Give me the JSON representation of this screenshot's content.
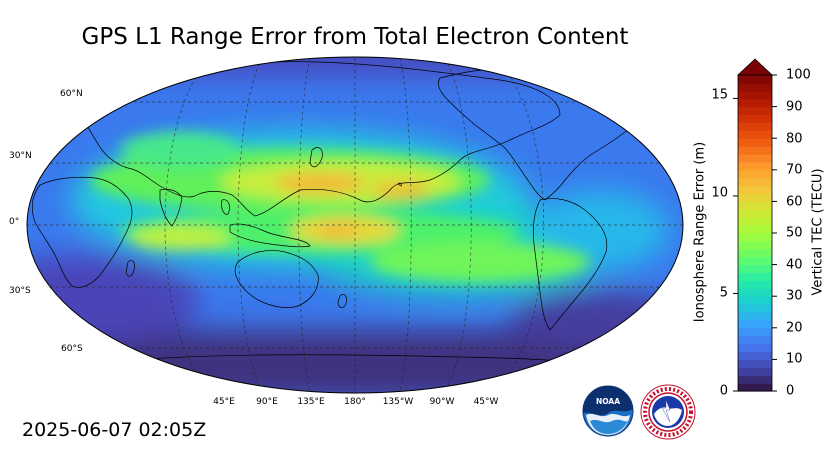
{
  "title": "GPS L1 Range Error from Total Electron Content",
  "timestamp": "2025-06-07 02:05Z",
  "map": {
    "projection": "robinson",
    "lat_labels": [
      "60°N",
      "30°N",
      "0°",
      "30°S",
      "60°S"
    ],
    "lon_labels": [
      "45°E",
      "90°E",
      "135°E",
      "180°",
      "135°W",
      "90°W",
      "45°W"
    ],
    "gridlines": "dashed"
  },
  "colorbar": {
    "left_axis_title": "Ionosphere Range Error (m)",
    "right_axis_title": "Vertical TEC (TECU)",
    "left_ticks": [
      "15",
      "10",
      "5",
      "0"
    ],
    "right_ticks": [
      "100",
      "90",
      "80",
      "70",
      "60",
      "50",
      "40",
      "30",
      "20",
      "10",
      "0"
    ],
    "range_tecu": [
      0,
      100
    ],
    "range_m": [
      0,
      16.2
    ],
    "extend": "max",
    "colormap": "turbo",
    "extend_color": "#7a0403"
  },
  "logos": {
    "noaa_text": "NOAA",
    "nws_text": "NATIONAL WEATHER SERVICE"
  }
}
